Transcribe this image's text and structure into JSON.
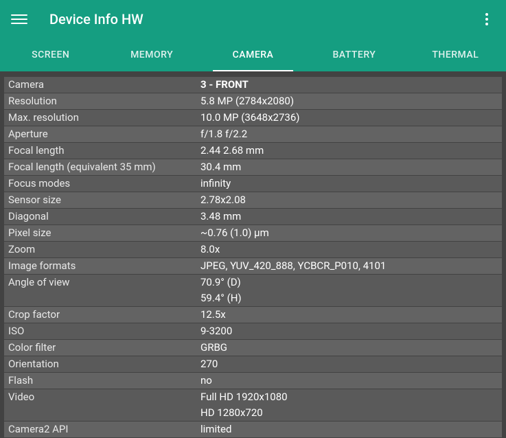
{
  "appbar": {
    "title": "Device Info HW"
  },
  "tabs": [
    {
      "label": "SCREEN",
      "active": false
    },
    {
      "label": "MEMORY",
      "active": false
    },
    {
      "label": "CAMERA",
      "active": true
    },
    {
      "label": "BATTERY",
      "active": false
    },
    {
      "label": "THERMAL",
      "active": false
    }
  ],
  "rows": [
    {
      "label": "Camera",
      "value": "3 - FRONT",
      "header": true
    },
    {
      "label": "Resolution",
      "value": "5.8 MP (2784x2080)"
    },
    {
      "label": "Max. resolution",
      "value": "10.0 MP (3648x2736)"
    },
    {
      "label": "Aperture",
      "value": "f/1.8 f/2.2"
    },
    {
      "label": "Focal length",
      "value": "2.44 2.68 mm"
    },
    {
      "label": "Focal length (equivalent 35 mm)",
      "value": "30.4 mm"
    },
    {
      "label": "Focus modes",
      "value": "infinity"
    },
    {
      "label": "Sensor size",
      "value": "2.78x2.08"
    },
    {
      "label": "Diagonal",
      "value": "3.48 mm"
    },
    {
      "label": "Pixel size",
      "value": "~0.76 (1.0) µm"
    },
    {
      "label": "Zoom",
      "value": "8.0x"
    },
    {
      "label": "Image formats",
      "value": "JPEG, YUV_420_888, YCBCR_P010, 4101"
    },
    {
      "label": "Angle of view",
      "value": "70.9° (D)\n59.4° (H)"
    },
    {
      "label": "Crop factor",
      "value": "12.5x"
    },
    {
      "label": "ISO",
      "value": "9-3200"
    },
    {
      "label": "Color filter",
      "value": "GRBG"
    },
    {
      "label": "Orientation",
      "value": "270"
    },
    {
      "label": "Flash",
      "value": "no"
    },
    {
      "label": "Video",
      "value": "Full HD 1920x1080\nHD 1280x720"
    },
    {
      "label": "Camera2 API",
      "value": "limited"
    }
  ],
  "colors": {
    "primary": "#159e81",
    "background": "#424242",
    "row_odd": "#5a5a5a",
    "row_even": "#636363",
    "text": "#ffffff",
    "label_text": "#e8e8e8"
  }
}
